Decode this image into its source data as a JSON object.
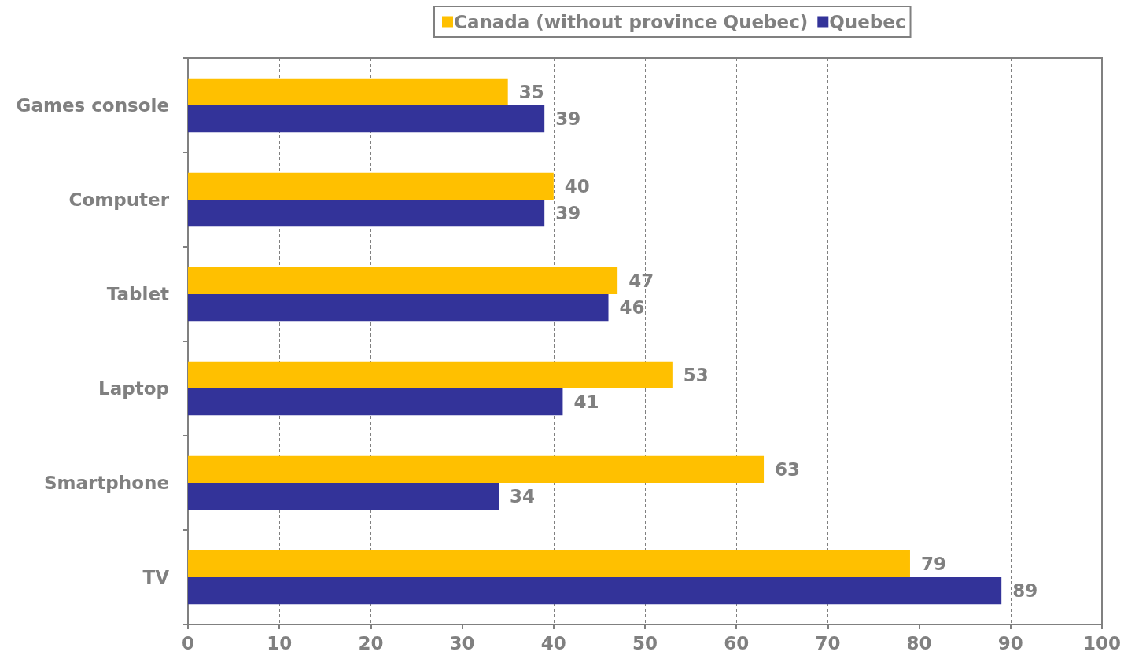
{
  "chart_data": {
    "type": "bar",
    "orientation": "horizontal",
    "categories": [
      "Games console",
      "Computer",
      "Tablet",
      "Laptop",
      "Smartphone",
      "TV"
    ],
    "series": [
      {
        "name": "Canada (without province Quebec)",
        "color": "#ffc000",
        "values": [
          35,
          40,
          47,
          53,
          63,
          79
        ]
      },
      {
        "name": "Quebec",
        "color": "#333399",
        "values": [
          39,
          39,
          46,
          41,
          34,
          89
        ]
      }
    ],
    "xlim": [
      0,
      100
    ],
    "xticks": [
      0,
      10,
      20,
      30,
      40,
      50,
      60,
      70,
      80,
      90,
      100
    ],
    "grid": "x",
    "legend": "top",
    "data_labels": true
  }
}
